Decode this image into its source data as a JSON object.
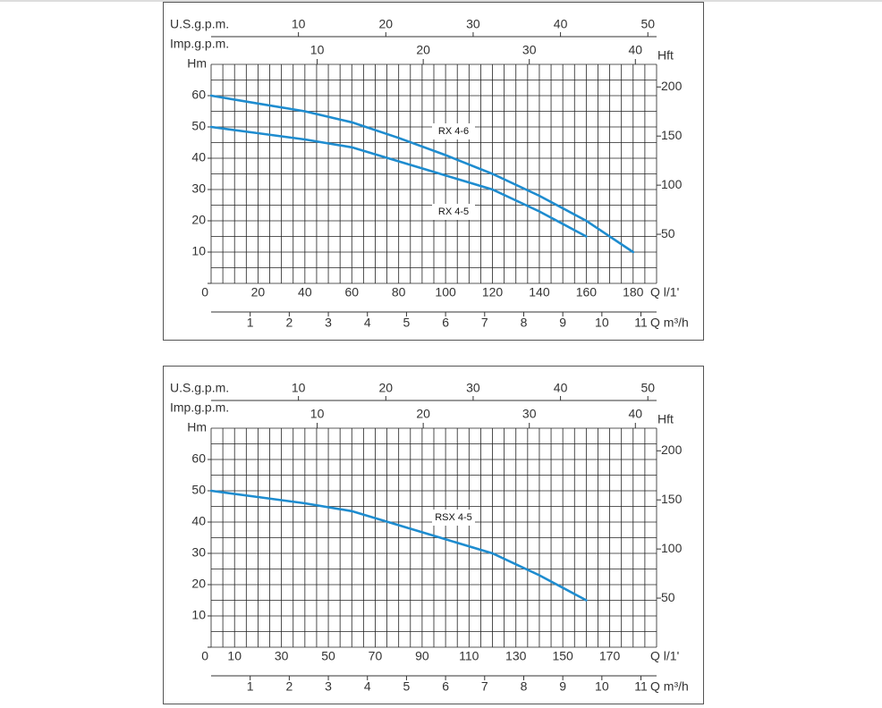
{
  "chart_data": [
    {
      "type": "line",
      "ylabel": "Hm",
      "y2label": "Hft",
      "xlabel": "Q l/1'",
      "xlim": [
        0,
        190
      ],
      "xticks": [
        20,
        40,
        60,
        80,
        100,
        120,
        140,
        160,
        180
      ],
      "ylim": [
        0,
        70
      ],
      "yticks": [
        0,
        10,
        20,
        30,
        40,
        50,
        60
      ],
      "y2lim": [
        0,
        223
      ],
      "y2ticks": [
        50,
        100,
        150,
        200
      ],
      "xgrid": [
        0,
        5,
        10,
        15,
        20,
        25,
        30,
        35,
        40,
        45,
        50,
        55,
        60,
        65,
        70,
        75,
        80,
        85,
        90,
        95,
        100,
        105,
        110,
        115,
        120,
        125,
        130,
        135,
        140,
        145,
        150,
        155,
        160,
        165,
        170,
        175,
        180,
        185,
        190
      ],
      "ygrid": [
        0,
        5,
        10,
        15,
        20,
        25,
        30,
        35,
        40,
        45,
        50,
        55,
        60,
        65,
        70
      ],
      "usgpm": {
        "label": "U.S.g.p.m.",
        "lim": [
          0,
          51
        ],
        "ticks": [
          10,
          20,
          30,
          40,
          50
        ]
      },
      "impgpm": {
        "label": "Imp.g.p.m.",
        "lim": [
          0,
          42
        ],
        "ticks": [
          10,
          20,
          30,
          40
        ]
      },
      "m3h": {
        "label": "Q m³/h",
        "lim": [
          0,
          11.4
        ],
        "ticks": [
          1,
          2,
          3,
          4,
          5,
          6,
          7,
          8,
          9,
          10,
          11
        ]
      },
      "series": [
        {
          "name": "RX 4-6",
          "color": "#1e8ccf",
          "x": [
            0,
            20,
            40,
            60,
            80,
            100,
            120,
            140,
            160,
            180
          ],
          "values": [
            60,
            57.5,
            55,
            51.5,
            46.5,
            41,
            35,
            28,
            20,
            10
          ]
        },
        {
          "name": "RX 4-5",
          "color": "#1e8ccf",
          "x": [
            0,
            20,
            40,
            60,
            80,
            100,
            120,
            140,
            160
          ],
          "values": [
            50,
            48,
            46,
            43.5,
            39,
            34.5,
            30,
            23,
            15
          ]
        }
      ]
    },
    {
      "type": "line",
      "ylabel": "Hm",
      "y2label": "Hft",
      "xlabel": "Q l/1'",
      "xlim": [
        0,
        190
      ],
      "xticks": [
        10,
        30,
        50,
        70,
        90,
        110,
        130,
        150,
        170
      ],
      "ylim": [
        0,
        70
      ],
      "yticks": [
        0,
        10,
        20,
        30,
        40,
        50,
        60
      ],
      "y2lim": [
        0,
        223
      ],
      "y2ticks": [
        50,
        100,
        150,
        200
      ],
      "xgrid": [
        0,
        5,
        10,
        15,
        20,
        25,
        30,
        35,
        40,
        45,
        50,
        55,
        60,
        65,
        70,
        75,
        80,
        85,
        90,
        95,
        100,
        105,
        110,
        115,
        120,
        125,
        130,
        135,
        140,
        145,
        150,
        155,
        160,
        165,
        170,
        175,
        180,
        185,
        190
      ],
      "ygrid": [
        0,
        5,
        10,
        15,
        20,
        25,
        30,
        35,
        40,
        45,
        50,
        55,
        60,
        65,
        70
      ],
      "usgpm": {
        "label": "U.S.g.p.m.",
        "lim": [
          0,
          51
        ],
        "ticks": [
          10,
          20,
          30,
          40,
          50
        ]
      },
      "impgpm": {
        "label": "Imp.g.p.m.",
        "lim": [
          0,
          42
        ],
        "ticks": [
          10,
          20,
          30,
          40
        ]
      },
      "m3h": {
        "label": "Q m³/h",
        "lim": [
          0,
          11.4
        ],
        "ticks": [
          1,
          2,
          3,
          4,
          5,
          6,
          7,
          8,
          9,
          10,
          11
        ]
      },
      "series": [
        {
          "name": "RSX 4-5",
          "color": "#1e8ccf",
          "x": [
            0,
            20,
            40,
            60,
            80,
            100,
            120,
            140,
            160
          ],
          "values": [
            50,
            48,
            46,
            43.5,
            39,
            34.5,
            30,
            23,
            15
          ]
        }
      ]
    }
  ]
}
